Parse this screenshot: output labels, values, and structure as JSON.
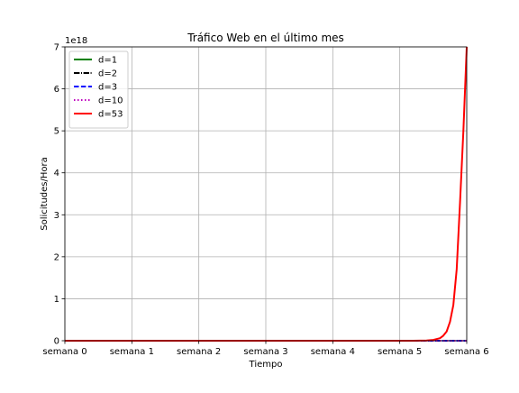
{
  "chart_data": {
    "type": "line",
    "title": "Tráfico Web en el último mes",
    "xlabel": "Tiempo",
    "ylabel": "Solicitudes/Hora",
    "y_scale_label": "1e18",
    "categories": [
      "semana 0",
      "semana 1",
      "semana 2",
      "semana 3",
      "semana 4",
      "semana 5",
      "semana 6"
    ],
    "xlim": [
      0,
      6
    ],
    "ylim": [
      0,
      7
    ],
    "y_ticks": [
      0,
      1,
      2,
      3,
      4,
      5,
      6,
      7
    ],
    "y_tick_labels": [
      "0",
      "1",
      "2",
      "3",
      "4",
      "5",
      "6",
      "7"
    ],
    "grid": true,
    "legend_position": "top-left",
    "series": [
      {
        "name": "d=1",
        "color": "#008000",
        "dash": "solid",
        "x": [
          0,
          4.4
        ],
        "values": [
          0,
          0
        ]
      },
      {
        "name": "d=2",
        "color": "#000000",
        "dash": "dashdot",
        "x": [
          0,
          4.4
        ],
        "values": [
          0,
          0
        ]
      },
      {
        "name": "d=3",
        "color": "#0000ff",
        "dash": "dashed",
        "x": [
          0,
          6
        ],
        "values": [
          0,
          0
        ]
      },
      {
        "name": "d=10",
        "color": "#bf00bf",
        "dash": "dotted",
        "x": [
          0,
          6
        ],
        "values": [
          0,
          0
        ]
      },
      {
        "name": "d=53",
        "color": "#ff0000",
        "dash": "solid",
        "x": [
          0,
          5.2,
          5.4,
          5.5,
          5.6,
          5.65,
          5.7,
          5.75,
          5.8,
          5.85,
          5.9,
          5.95,
          6.0
        ],
        "values": [
          0,
          0,
          0.005,
          0.02,
          0.06,
          0.12,
          0.22,
          0.45,
          0.85,
          1.7,
          3.3,
          5.0,
          7.0
        ]
      }
    ]
  }
}
